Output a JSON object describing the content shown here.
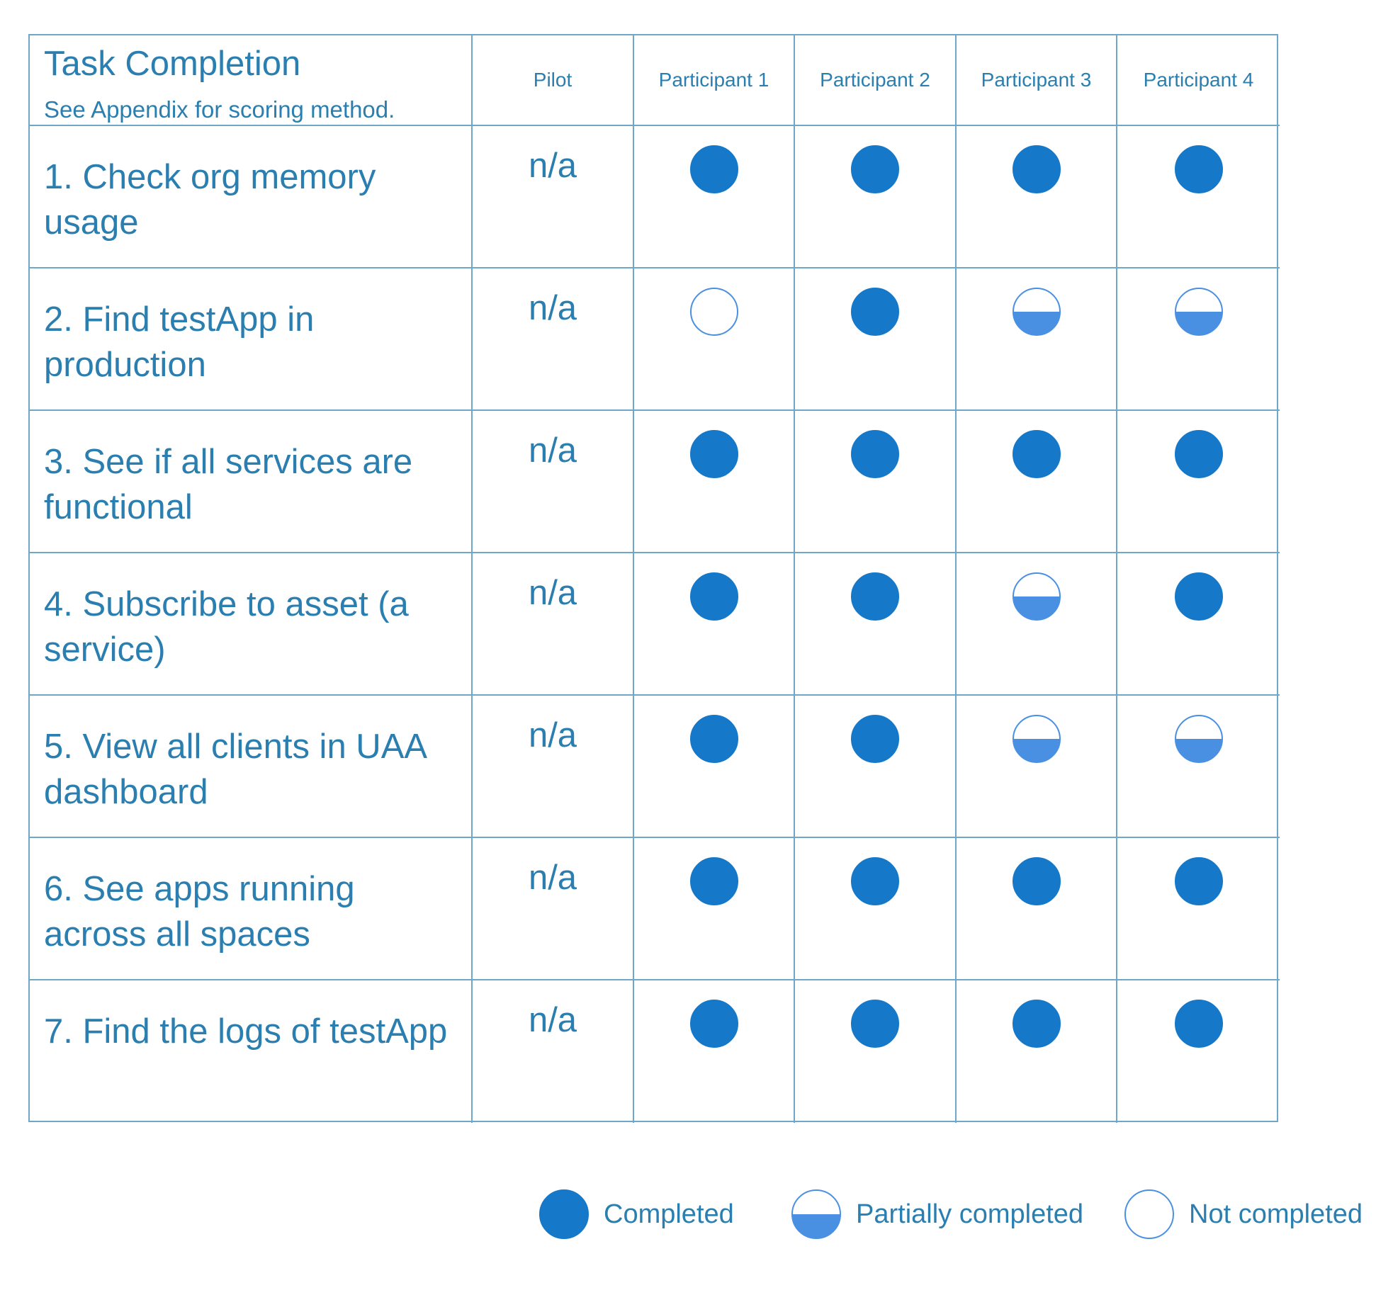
{
  "header": {
    "title": "Task Completion",
    "subtitle": "See Appendix for scoring method.",
    "columns": [
      "Pilot",
      "Participant 1",
      "Participant 2",
      "Participant 3",
      "Participant 4"
    ]
  },
  "tasks": [
    {
      "label": "1. Check org memory usage",
      "pilot": "n/a",
      "results": [
        "completed",
        "completed",
        "completed",
        "completed"
      ]
    },
    {
      "label": "2. Find testApp in production",
      "pilot": "n/a",
      "results": [
        "not_completed",
        "completed",
        "partial",
        "partial"
      ]
    },
    {
      "label": "3. See if all services are functional",
      "pilot": "n/a",
      "results": [
        "completed",
        "completed",
        "completed",
        "completed"
      ]
    },
    {
      "label": "4. Subscribe to asset (a service)",
      "pilot": "n/a",
      "results": [
        "completed",
        "completed",
        "partial",
        "completed"
      ]
    },
    {
      "label": "5. View all clients in UAA dashboard",
      "pilot": "n/a",
      "results": [
        "completed",
        "completed",
        "partial",
        "partial"
      ]
    },
    {
      "label": "6. See apps running across all spaces",
      "pilot": "n/a",
      "results": [
        "completed",
        "completed",
        "completed",
        "completed"
      ]
    },
    {
      "label": "7. Find the logs of testApp",
      "pilot": "n/a",
      "results": [
        "completed",
        "completed",
        "completed",
        "completed"
      ]
    }
  ],
  "legend": {
    "completed": "Completed",
    "partial": "Partially completed",
    "not_completed": "Not completed"
  },
  "colors": {
    "completed_fill": "#1578c9",
    "partial_fill": "#4a90e2",
    "outline": "#4a90e2",
    "text": "#2a7fb0",
    "grid": "#6fa8c6"
  }
}
